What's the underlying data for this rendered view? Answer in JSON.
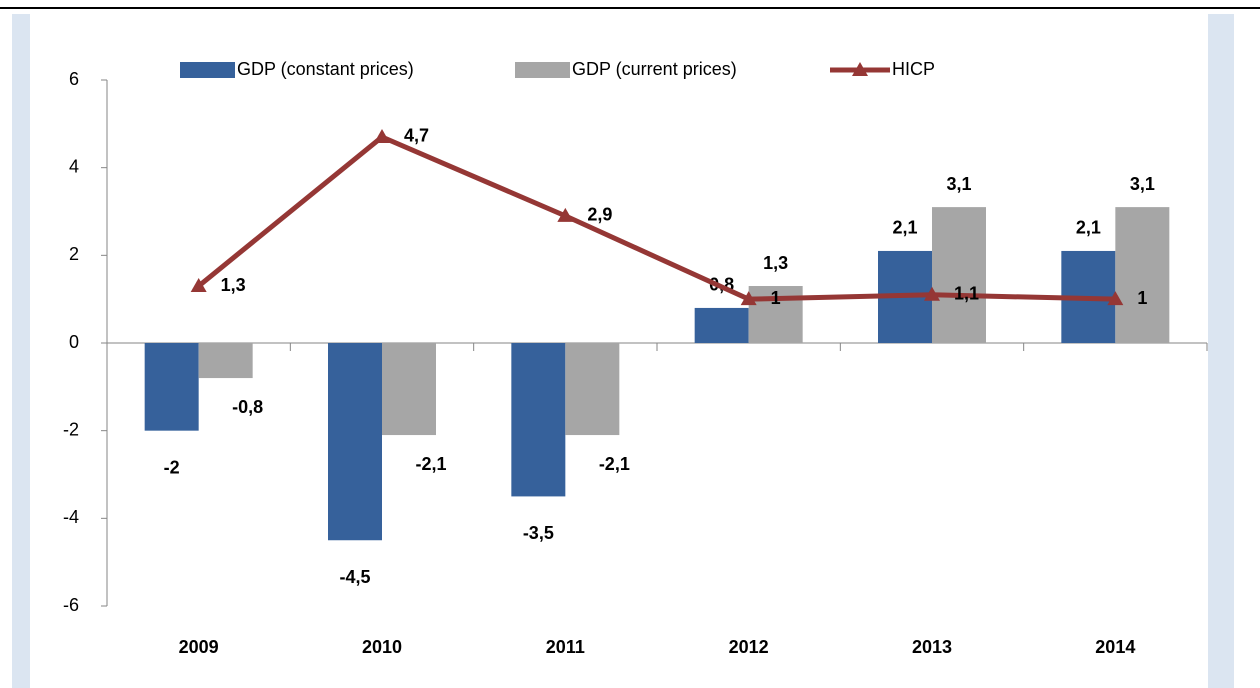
{
  "chart_data": {
    "type": "bar-line",
    "categories": [
      "2009",
      "2010",
      "2011",
      "2012",
      "2013",
      "2014"
    ],
    "series": [
      {
        "name": "GDP (constant prices)",
        "type": "bar",
        "color": "#36619b",
        "values": [
          -2,
          -4.5,
          -3.5,
          0.8,
          2.1,
          2.1
        ],
        "value_labels": [
          "-2",
          "-4,5",
          "-3,5",
          "0,8",
          "2,1",
          "2,1"
        ]
      },
      {
        "name": "GDP (current prices)",
        "type": "bar",
        "color": "#a6a6a6",
        "values": [
          -0.8,
          -2.1,
          -2.1,
          1.3,
          3.1,
          3.1
        ],
        "value_labels": [
          "-0,8",
          "-2,1",
          "-2,1",
          "1,3",
          "3,1",
          "3,1"
        ]
      },
      {
        "name": "HICP",
        "type": "line",
        "color": "#953735",
        "values": [
          1.3,
          4.7,
          2.9,
          1,
          1.1,
          1
        ],
        "value_labels": [
          "1,3",
          "4,7",
          "2,9",
          "1",
          "1,1",
          "1"
        ]
      }
    ],
    "ylim": [
      -6,
      6
    ],
    "yticks": [
      -6,
      -4,
      -2,
      0,
      2,
      4,
      6
    ],
    "legend": "top"
  }
}
